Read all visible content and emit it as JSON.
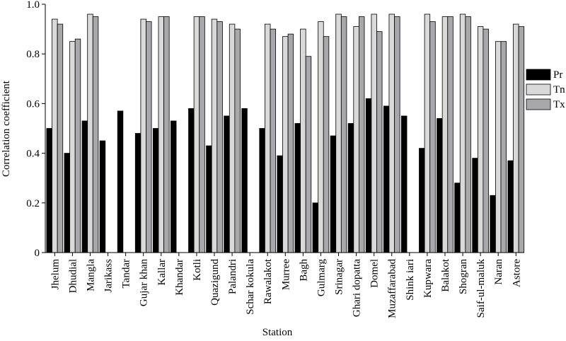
{
  "chart_data": {
    "type": "bar",
    "xlabel": "Station",
    "ylabel": "Correlation coefficient",
    "ylim": [
      0,
      1.0
    ],
    "yticks": [
      0,
      0.2,
      0.4,
      0.6,
      0.8,
      1.0
    ],
    "ytick_labels": [
      "0",
      "0.2",
      "0.4",
      "0.6",
      "0.8",
      "1.0"
    ],
    "grid": false,
    "legend_position": "right",
    "categories": [
      "Jhelum",
      "Dhudial",
      "Mangla",
      "Jarikass",
      "Tandar",
      "Gujar khan",
      "Kallar",
      "Khandar",
      "Kotli",
      "Quazigund",
      "Palandri",
      "Schar kokula",
      "Rawalakot",
      "Murree",
      "Bagh",
      "Gulmarg",
      "Srinagar",
      "Ghari dopatta",
      "Domel",
      "Muzaffarabad",
      "Shink iari",
      "Kupwara",
      "Balakot",
      "Shogran",
      "Saif-ul-maluk",
      "Naran",
      "Astore"
    ],
    "series": [
      {
        "name": "Pr",
        "color": "#000000",
        "values": [
          0.5,
          0.4,
          0.53,
          0.45,
          0.57,
          0.48,
          0.5,
          0.53,
          0.58,
          0.43,
          0.55,
          0.58,
          0.5,
          0.39,
          0.52,
          0.2,
          0.47,
          0.52,
          0.62,
          0.59,
          0.55,
          0.42,
          0.54,
          0.28,
          0.38,
          0.23,
          0.37
        ]
      },
      {
        "name": "Tn",
        "color": "#d9d9d9",
        "values": [
          0.94,
          0.85,
          0.96,
          null,
          null,
          0.94,
          0.95,
          null,
          0.95,
          0.94,
          0.92,
          null,
          0.92,
          0.87,
          0.9,
          0.93,
          0.96,
          0.91,
          0.96,
          0.96,
          null,
          0.96,
          0.95,
          0.96,
          0.91,
          0.85,
          0.92
        ]
      },
      {
        "name": "Tx",
        "color": "#a8a8ac",
        "values": [
          0.92,
          0.86,
          0.95,
          null,
          null,
          0.93,
          0.95,
          null,
          0.95,
          0.93,
          0.9,
          null,
          0.9,
          0.88,
          0.79,
          0.87,
          0.95,
          0.95,
          0.89,
          0.95,
          null,
          0.93,
          0.95,
          0.95,
          0.9,
          0.85,
          0.91
        ]
      }
    ]
  }
}
